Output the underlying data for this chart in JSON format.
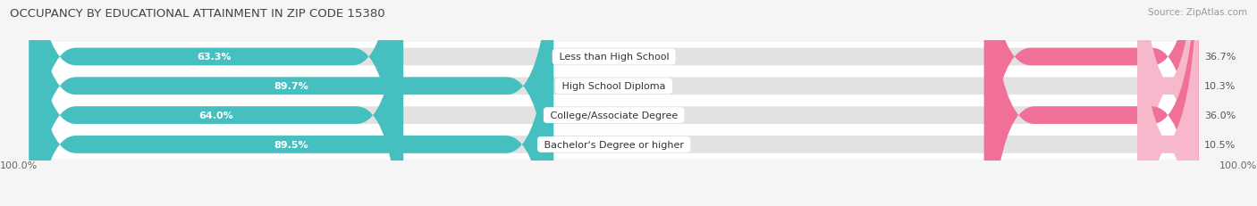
{
  "title": "OCCUPANCY BY EDUCATIONAL ATTAINMENT IN ZIP CODE 15380",
  "source": "Source: ZipAtlas.com",
  "categories": [
    "Less than High School",
    "High School Diploma",
    "College/Associate Degree",
    "Bachelor's Degree or higher"
  ],
  "owner_pct": [
    63.3,
    89.7,
    64.0,
    89.5
  ],
  "renter_pct": [
    36.7,
    10.3,
    36.0,
    10.5
  ],
  "owner_color": "#45bfbf",
  "renter_color": "#f07098",
  "renter_color_light": "#f8b8cc",
  "bg_color": "#f5f5f5",
  "bar_bg_color": "#e2e2e2",
  "row_bg_color": "#ffffff",
  "title_fontsize": 9.5,
  "label_fontsize": 8,
  "pct_fontsize": 8,
  "tick_fontsize": 8,
  "source_fontsize": 7.5,
  "legend_fontsize": 8.5,
  "x_axis_label_left": "100.0%",
  "x_axis_label_right": "100.0%"
}
